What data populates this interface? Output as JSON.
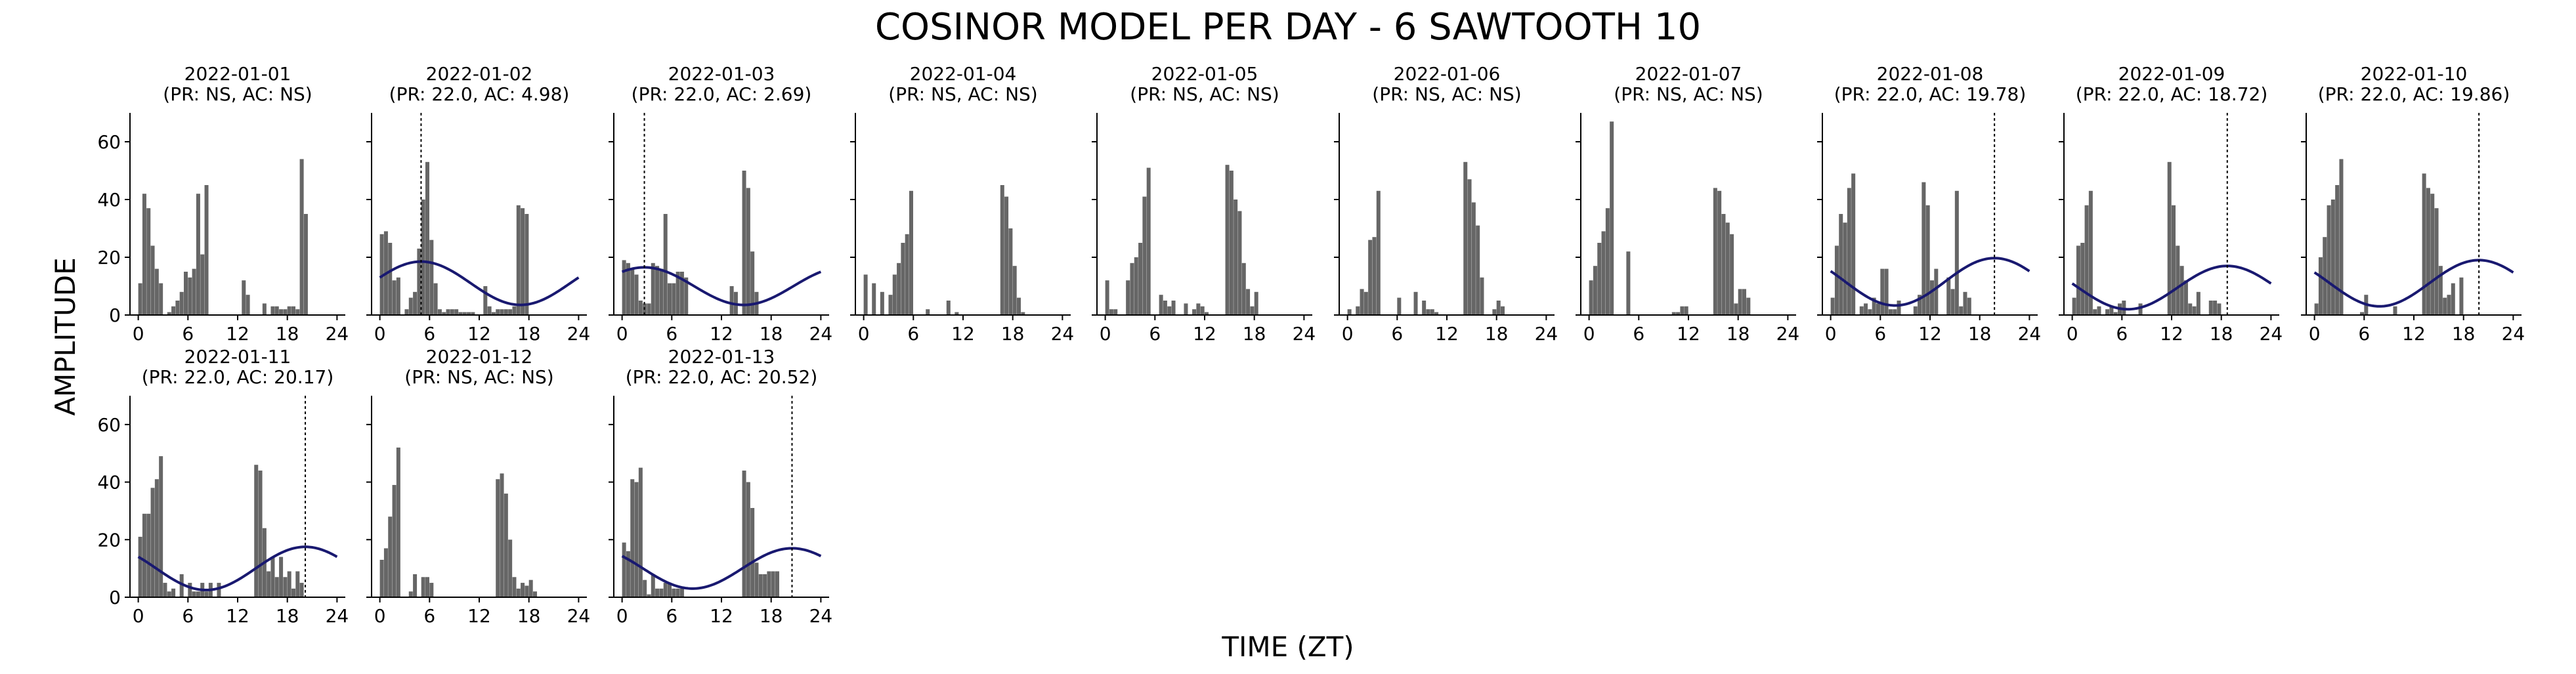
{
  "title": "COSINOR MODEL PER DAY - 6 SAWTOOTH 10",
  "xlabel": "TIME (ZT)",
  "ylabel": "AMPLITUDE",
  "colors": {
    "bar": "#666666",
    "curve": "#191970",
    "axis": "#000000",
    "acrophase_line": "#000000"
  },
  "chart_data": {
    "type": "bar",
    "title": "COSINOR MODEL PER DAY - 6 SAWTOOTH 10",
    "xlabel": "TIME (ZT)",
    "ylabel": "AMPLITUDE",
    "xlim": [
      -1,
      25
    ],
    "ylim": [
      0,
      70
    ],
    "xticks": [
      0,
      6,
      12,
      18,
      24
    ],
    "yticks": [
      0,
      20,
      40,
      60
    ],
    "bin_width": 0.5,
    "panels": [
      {
        "date": "2022-01-01",
        "stats": "(PR: NS, AC: NS)",
        "fit": null,
        "values": [
          11,
          42,
          37,
          24,
          16,
          11,
          0,
          1,
          3,
          5,
          8,
          15,
          13,
          16,
          42,
          21,
          45,
          0,
          0,
          0,
          0,
          0,
          0,
          0,
          0,
          12,
          7,
          0,
          0,
          0,
          4,
          0,
          3,
          3,
          2,
          2,
          3,
          3,
          2,
          54,
          35,
          0
        ]
      },
      {
        "date": "2022-01-02",
        "stats": "(PR: 22.0, AC: 4.98)",
        "fit": {
          "mesor": 11,
          "amplitude": 7.5,
          "acrophase": 4.98
        },
        "values": [
          28,
          29,
          25,
          12,
          13,
          0,
          2,
          6,
          8,
          23,
          40,
          53,
          26,
          11,
          2,
          1,
          2,
          2,
          2,
          1,
          1,
          1,
          1,
          0,
          0,
          10,
          3,
          1,
          2,
          2,
          2,
          2,
          3,
          38,
          37,
          35
        ]
      },
      {
        "date": "2022-01-03",
        "stats": "(PR: 22.0, AC: 2.69)",
        "fit": {
          "mesor": 10,
          "amplitude": 6.5,
          "acrophase": 2.69
        },
        "values": [
          19,
          18,
          16,
          14,
          5,
          4,
          4,
          18,
          17,
          16,
          35,
          11,
          11,
          15,
          15,
          13,
          0,
          0,
          0,
          0,
          0,
          0,
          0,
          0,
          0,
          0,
          10,
          8,
          0,
          50,
          44,
          22,
          8,
          0
        ]
      },
      {
        "date": "2022-01-04",
        "stats": "(PR: NS, AC: NS)",
        "fit": null,
        "values": [
          14,
          0,
          11,
          0,
          8,
          0,
          7,
          14,
          18,
          25,
          28,
          43,
          0,
          0,
          0,
          2,
          0,
          0,
          0,
          0,
          5,
          0,
          1,
          0,
          0,
          0,
          0,
          0,
          0,
          0,
          0,
          0,
          0,
          45,
          41,
          30,
          17,
          6,
          1
        ]
      },
      {
        "date": "2022-01-05",
        "stats": "(PR: NS, AC: NS)",
        "fit": null,
        "values": [
          12,
          2,
          2,
          0,
          0,
          12,
          18,
          20,
          25,
          41,
          51,
          0,
          0,
          7,
          5,
          3,
          5,
          0,
          0,
          4,
          0,
          2,
          4,
          3,
          1,
          0,
          0,
          0,
          0,
          52,
          50,
          40,
          36,
          18,
          9,
          3,
          8
        ]
      },
      {
        "date": "2022-01-06",
        "stats": "(PR: NS, AC: NS)",
        "fit": null,
        "values": [
          2,
          0,
          3,
          9,
          8,
          26,
          27,
          43,
          0,
          0,
          0,
          0,
          6,
          0,
          0,
          0,
          8,
          0,
          5,
          2,
          2,
          1,
          0,
          0,
          0,
          0,
          0,
          0,
          53,
          47,
          39,
          31,
          13,
          0,
          0,
          2,
          5,
          3,
          0
        ]
      },
      {
        "date": "2022-01-07",
        "stats": "(PR: NS, AC: NS)",
        "fit": null,
        "values": [
          12,
          17,
          25,
          29,
          37,
          67,
          0,
          0,
          0,
          22,
          0,
          0,
          0,
          0,
          0,
          0,
          0,
          0,
          0,
          0,
          1,
          1,
          3,
          3,
          0,
          0,
          0,
          0,
          0,
          0,
          44,
          43,
          35,
          32,
          28,
          4,
          9,
          9,
          6
        ]
      },
      {
        "date": "2022-01-08",
        "stats": "(PR: 22.0, AC: 19.78)",
        "fit": {
          "mesor": 11.5,
          "amplitude": 8.2,
          "acrophase": 19.78
        },
        "values": [
          6,
          24,
          35,
          32,
          44,
          49,
          0,
          3,
          4,
          2,
          6,
          4,
          16,
          16,
          2,
          2,
          5,
          0,
          0,
          0,
          3,
          7,
          46,
          38,
          12,
          16,
          0,
          0,
          13,
          9,
          43,
          3,
          8,
          6,
          0,
          0,
          0
        ]
      },
      {
        "date": "2022-01-09",
        "stats": "(PR: 22.0, AC: 18.72)",
        "fit": {
          "mesor": 9.5,
          "amplitude": 7.5,
          "acrophase": 18.72
        },
        "values": [
          6,
          24,
          25,
          38,
          43,
          2,
          3,
          0,
          2,
          3,
          1,
          4,
          5,
          0,
          0,
          0,
          4,
          0,
          0,
          0,
          0,
          0,
          0,
          53,
          38,
          24,
          17,
          12,
          4,
          3,
          8,
          0,
          0,
          5,
          5,
          4
        ]
      },
      {
        "date": "2022-01-10",
        "stats": "(PR: 22.0, AC: 19.86)",
        "fit": {
          "mesor": 11,
          "amplitude": 8,
          "acrophase": 19.86
        },
        "values": [
          4,
          20,
          27,
          38,
          40,
          45,
          54,
          0,
          0,
          0,
          0,
          1,
          7,
          0,
          0,
          0,
          0,
          0,
          0,
          3,
          0,
          0,
          0,
          0,
          0,
          0,
          49,
          44,
          42,
          37,
          17,
          6,
          7,
          11,
          0,
          13,
          0
        ]
      },
      {
        "date": "2022-01-11",
        "stats": "(PR: 22.0, AC: 20.17)",
        "fit": {
          "mesor": 10,
          "amplitude": 7.5,
          "acrophase": 20.17
        },
        "values": [
          21,
          29,
          29,
          38,
          41,
          49,
          5,
          2,
          3,
          0,
          8,
          0,
          5,
          2,
          2,
          5,
          2,
          5,
          0,
          5,
          0,
          0,
          0,
          0,
          0,
          0,
          0,
          0,
          46,
          44,
          24,
          9,
          14,
          7,
          14,
          7,
          9,
          3,
          9,
          5
        ]
      },
      {
        "date": "2022-01-12",
        "stats": "(PR: NS, AC: NS)",
        "fit": null,
        "values": [
          13,
          17,
          28,
          39,
          52,
          0,
          0,
          2,
          8,
          0,
          7,
          7,
          5,
          0,
          0,
          0,
          0,
          0,
          0,
          0,
          0,
          0,
          0,
          0,
          0,
          0,
          0,
          0,
          41,
          43,
          36,
          20,
          7,
          3,
          5,
          4,
          6,
          2,
          0
        ]
      },
      {
        "date": "2022-01-13",
        "stats": "(PR: 22.0, AC: 20.52)",
        "fit": {
          "mesor": 10,
          "amplitude": 7,
          "acrophase": 20.52
        },
        "values": [
          19,
          16,
          41,
          40,
          45,
          6,
          1,
          8,
          3,
          3,
          5,
          5,
          3,
          3,
          3,
          0,
          0,
          0,
          0,
          0,
          0,
          0,
          0,
          0,
          0,
          0,
          0,
          0,
          0,
          44,
          40,
          31,
          12,
          8,
          8,
          9,
          9,
          9
        ]
      }
    ]
  }
}
